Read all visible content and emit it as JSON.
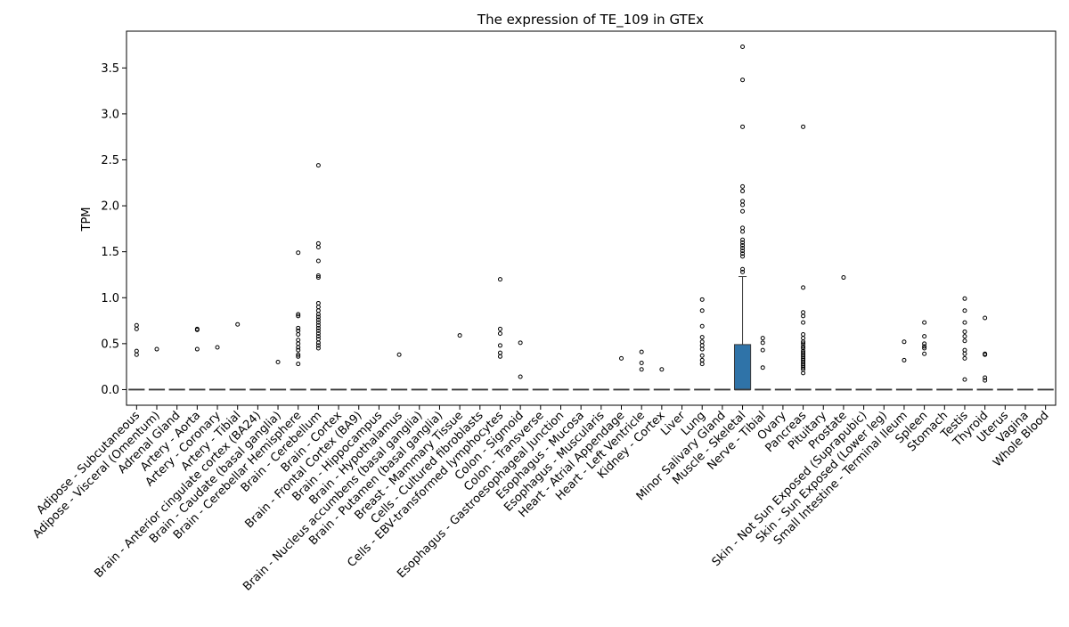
{
  "chart_data": {
    "type": "box",
    "title": "The expression of TE_109 in GTEx",
    "xlabel": "",
    "ylabel": "TPM",
    "ylim": [
      -0.17,
      3.9
    ],
    "y_ticks": [
      "0.0",
      "0.5",
      "1.0",
      "1.5",
      "2.0",
      "2.5",
      "3.0",
      "3.5"
    ],
    "box_color": "#2f73a8",
    "categories": [
      {
        "name": "Adipose - Subcutaneous",
        "box": [
          0,
          0,
          0,
          0,
          0
        ],
        "outliers": [
          0.7,
          0.66,
          0.42,
          0.38
        ]
      },
      {
        "name": "Adipose - Visceral (Omentum)",
        "box": [
          0,
          0,
          0,
          0,
          0
        ],
        "outliers": [
          0.44
        ]
      },
      {
        "name": "Adrenal Gland",
        "box": [
          0,
          0,
          0,
          0,
          0
        ],
        "outliers": []
      },
      {
        "name": "Artery - Aorta",
        "box": [
          0,
          0,
          0,
          0,
          0
        ],
        "outliers": [
          0.66,
          0.65,
          0.44
        ]
      },
      {
        "name": "Artery - Coronary",
        "box": [
          0,
          0,
          0,
          0,
          0
        ],
        "outliers": [
          0.46
        ]
      },
      {
        "name": "Artery - Tibial",
        "box": [
          0,
          0,
          0,
          0,
          0
        ],
        "outliers": [
          0.71
        ]
      },
      {
        "name": "Brain - Anterior cingulate cortex (BA24)",
        "box": [
          0,
          0,
          0,
          0,
          0
        ],
        "outliers": []
      },
      {
        "name": "Brain - Caudate (basal ganglia)",
        "box": [
          0,
          0,
          0,
          0,
          0
        ],
        "outliers": [
          0.3
        ]
      },
      {
        "name": "Brain - Cerebellar Hemisphere",
        "box": [
          0,
          0,
          0,
          0,
          0
        ],
        "outliers": [
          1.49,
          0.82,
          0.8,
          0.67,
          0.64,
          0.6,
          0.54,
          0.5,
          0.46,
          0.43,
          0.38,
          0.36,
          0.28
        ]
      },
      {
        "name": "Brain - Cerebellum",
        "box": [
          0,
          0,
          0,
          0,
          0
        ],
        "outliers": [
          2.44,
          1.59,
          1.55,
          1.4,
          1.24,
          1.22,
          0.94,
          0.9,
          0.86,
          0.82,
          0.79,
          0.76,
          0.73,
          0.7,
          0.67,
          0.64,
          0.61,
          0.58,
          0.55,
          0.51,
          0.48,
          0.45
        ]
      },
      {
        "name": "Brain - Cortex",
        "box": [
          0,
          0,
          0,
          0,
          0
        ],
        "outliers": []
      },
      {
        "name": "Brain - Frontal Cortex (BA9)",
        "box": [
          0,
          0,
          0,
          0,
          0
        ],
        "outliers": []
      },
      {
        "name": "Brain - Hippocampus",
        "box": [
          0,
          0,
          0,
          0,
          0
        ],
        "outliers": []
      },
      {
        "name": "Brain - Hypothalamus",
        "box": [
          0,
          0,
          0,
          0,
          0
        ],
        "outliers": [
          0.38
        ]
      },
      {
        "name": "Brain - Nucleus accumbens (basal ganglia)",
        "box": [
          0,
          0,
          0,
          0,
          0
        ],
        "outliers": []
      },
      {
        "name": "Brain - Putamen (basal ganglia)",
        "box": [
          0,
          0,
          0,
          0,
          0
        ],
        "outliers": []
      },
      {
        "name": "Breast - Mammary Tissue",
        "box": [
          0,
          0,
          0,
          0,
          0
        ],
        "outliers": [
          0.59
        ]
      },
      {
        "name": "Cells - Cultured fibroblasts",
        "box": [
          0,
          0,
          0,
          0,
          0
        ],
        "outliers": []
      },
      {
        "name": "Cells - EBV-transformed lymphocytes",
        "box": [
          0,
          0,
          0,
          0,
          0
        ],
        "outliers": [
          1.2,
          0.66,
          0.61,
          0.48,
          0.4,
          0.36
        ]
      },
      {
        "name": "Colon - Sigmoid",
        "box": [
          0,
          0,
          0,
          0,
          0
        ],
        "outliers": [
          0.51,
          0.14
        ]
      },
      {
        "name": "Colon - Transverse",
        "box": [
          0,
          0,
          0,
          0,
          0
        ],
        "outliers": []
      },
      {
        "name": "Esophagus - Gastroesophageal Junction",
        "box": [
          0,
          0,
          0,
          0,
          0
        ],
        "outliers": []
      },
      {
        "name": "Esophagus - Mucosa",
        "box": [
          0,
          0,
          0,
          0,
          0
        ],
        "outliers": []
      },
      {
        "name": "Esophagus - Muscularis",
        "box": [
          0,
          0,
          0,
          0,
          0
        ],
        "outliers": []
      },
      {
        "name": "Heart - Atrial Appendage",
        "box": [
          0,
          0,
          0,
          0,
          0
        ],
        "outliers": [
          0.34
        ]
      },
      {
        "name": "Heart - Left Ventricle",
        "box": [
          0,
          0,
          0,
          0,
          0
        ],
        "outliers": [
          0.41,
          0.29,
          0.22
        ]
      },
      {
        "name": "Kidney - Cortex",
        "box": [
          0,
          0,
          0,
          0,
          0
        ],
        "outliers": [
          0.22
        ]
      },
      {
        "name": "Liver",
        "box": [
          0,
          0,
          0,
          0,
          0
        ],
        "outliers": []
      },
      {
        "name": "Lung",
        "box": [
          0,
          0,
          0,
          0,
          0
        ],
        "outliers": [
          0.98,
          0.86,
          0.69,
          0.57,
          0.52,
          0.48,
          0.44,
          0.37,
          0.32,
          0.28
        ]
      },
      {
        "name": "Minor Salivary Gland",
        "box": [
          0,
          0,
          0,
          0,
          0
        ],
        "outliers": []
      },
      {
        "name": "Muscle - Skeletal",
        "box": [
          0,
          0,
          0,
          0.49,
          1.23
        ],
        "outliers": [
          3.73,
          3.37,
          2.86,
          2.21,
          2.16,
          2.05,
          2.01,
          1.94,
          1.76,
          1.72,
          1.63,
          1.6,
          1.57,
          1.54,
          1.51,
          1.48,
          1.45,
          1.31,
          1.28
        ]
      },
      {
        "name": "Nerve - Tibial",
        "box": [
          0,
          0,
          0,
          0,
          0
        ],
        "outliers": [
          0.56,
          0.51,
          0.43,
          0.24
        ]
      },
      {
        "name": "Ovary",
        "box": [
          0,
          0,
          0,
          0,
          0
        ],
        "outliers": []
      },
      {
        "name": "Pancreas",
        "box": [
          0,
          0,
          0,
          0,
          0
        ],
        "outliers": [
          2.86,
          1.11,
          0.84,
          0.8,
          0.73,
          0.6,
          0.56,
          0.52,
          0.5,
          0.47,
          0.45,
          0.42,
          0.4,
          0.38,
          0.36,
          0.34,
          0.32,
          0.3,
          0.28,
          0.26,
          0.24,
          0.22,
          0.18
        ]
      },
      {
        "name": "Pituitary",
        "box": [
          0,
          0,
          0,
          0,
          0
        ],
        "outliers": []
      },
      {
        "name": "Prostate",
        "box": [
          0,
          0,
          0,
          0,
          0
        ],
        "outliers": [
          1.22
        ]
      },
      {
        "name": "Skin - Not Sun Exposed (Suprapubic)",
        "box": [
          0,
          0,
          0,
          0,
          0
        ],
        "outliers": []
      },
      {
        "name": "Skin - Sun Exposed (Lower leg)",
        "box": [
          0,
          0,
          0,
          0,
          0
        ],
        "outliers": []
      },
      {
        "name": "Small Intestine - Terminal Ileum",
        "box": [
          0,
          0,
          0,
          0,
          0
        ],
        "outliers": [
          0.52,
          0.32
        ]
      },
      {
        "name": "Spleen",
        "box": [
          0,
          0,
          0,
          0,
          0
        ],
        "outliers": [
          0.73,
          0.58,
          0.5,
          0.47,
          0.45,
          0.39
        ]
      },
      {
        "name": "Stomach",
        "box": [
          0,
          0,
          0,
          0,
          0
        ],
        "outliers": []
      },
      {
        "name": "Testis",
        "box": [
          0,
          0,
          0,
          0,
          0
        ],
        "outliers": [
          0.99,
          0.86,
          0.73,
          0.63,
          0.58,
          0.53,
          0.43,
          0.39,
          0.34,
          0.11
        ]
      },
      {
        "name": "Thyroid",
        "box": [
          0,
          0,
          0,
          0,
          0
        ],
        "outliers": [
          0.78,
          0.39,
          0.38,
          0.13,
          0.1
        ]
      },
      {
        "name": "Uterus",
        "box": [
          0,
          0,
          0,
          0,
          0
        ],
        "outliers": []
      },
      {
        "name": "Vagina",
        "box": [
          0,
          0,
          0,
          0,
          0
        ],
        "outliers": []
      },
      {
        "name": "Whole Blood",
        "box": [
          0,
          0,
          0,
          0,
          0
        ],
        "outliers": []
      }
    ]
  }
}
